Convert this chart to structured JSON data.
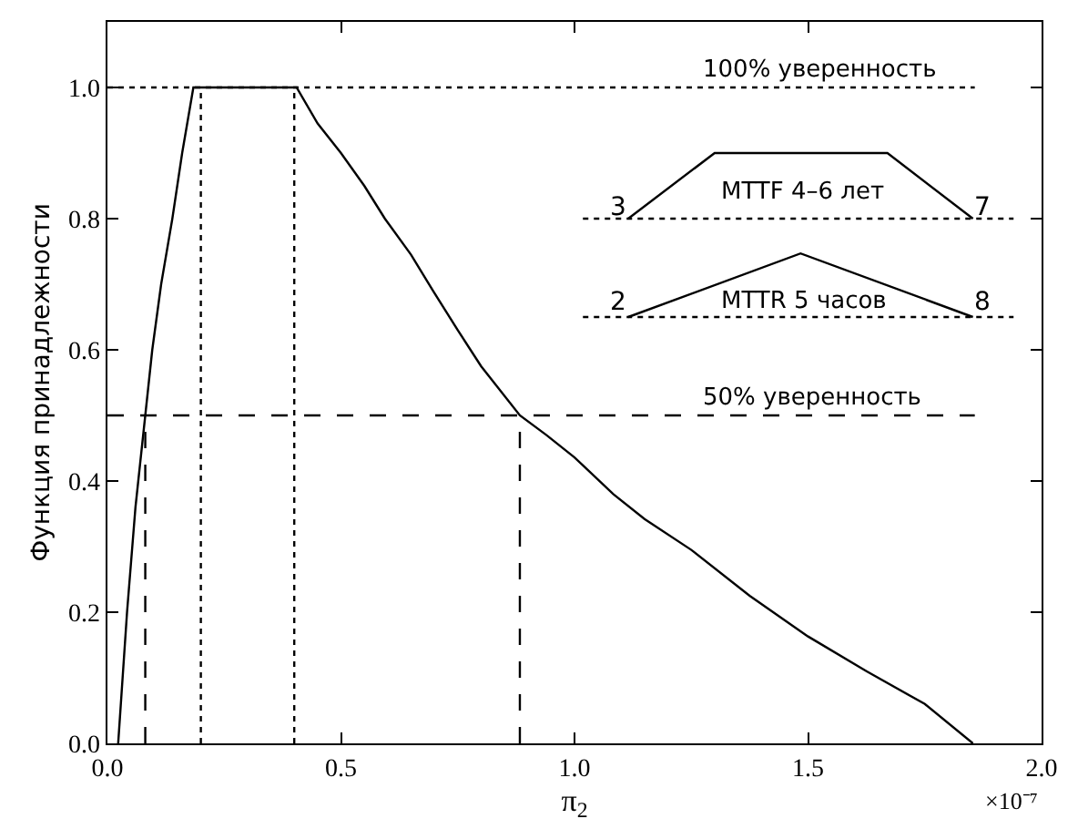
{
  "chart_data": {
    "type": "line",
    "xlabel": "π$_{2}$",
    "ylabel": "Функция принадлежности",
    "xlim": [
      0,
      2.0
    ],
    "ylim": [
      0,
      1.1
    ],
    "xticks": [
      {
        "value": 0,
        "label": "0.0"
      },
      0.5,
      {
        "value": 1,
        "label": "1.0"
      },
      1.5,
      {
        "value": 2,
        "label": "2.0"
      }
    ],
    "yticks": [
      {
        "value": 0,
        "label": "0.0"
      },
      0.2,
      0.4,
      0.6,
      0.8,
      {
        "value": 1,
        "label": "1.0"
      }
    ],
    "series": [
      {
        "color": "#000000",
        "line_style": "solid",
        "x": [
          0.023,
          0.042,
          0.06,
          0.081,
          0.096,
          0.115,
          0.139,
          0.16,
          0.184,
          0.405,
          0.45,
          0.5,
          0.55,
          0.594,
          0.65,
          0.697,
          0.75,
          0.8,
          0.883,
          0.94,
          1.0,
          1.083,
          1.15,
          1.25,
          1.375,
          1.5,
          1.625,
          1.75,
          1.853
        ],
        "values": [
          0,
          0.2,
          0.36,
          0.5,
          0.6,
          0.7,
          0.8,
          0.9,
          1.0,
          1.0,
          0.945,
          0.9,
          0.85,
          0.8,
          0.745,
          0.69,
          0.63,
          0.575,
          0.5,
          0.47,
          0.436,
          0.38,
          0.342,
          0.295,
          0.225,
          0.163,
          0.11,
          0.06,
          0
        ]
      },
      {
        "color": "#000000",
        "line_style": "dotted",
        "x": [
          0,
          1.857
        ],
        "values": [
          1.0,
          1.0
        ]
      },
      {
        "color": "#000000",
        "line_style": "dotted",
        "x": [
          0.2,
          0.2
        ],
        "values": [
          0,
          1.0
        ]
      },
      {
        "color": "#000000",
        "line_style": "dotted",
        "x": [
          0.4,
          0.4
        ],
        "values": [
          0,
          1.0
        ]
      },
      {
        "color": "#000000",
        "line_style": "dashed",
        "x": [
          0,
          1.857
        ],
        "values": [
          0.5,
          0.5
        ]
      },
      {
        "color": "#000000",
        "line_style": "dashed",
        "x": [
          0.081,
          0.081
        ],
        "values": [
          0,
          0.5
        ]
      },
      {
        "color": "#000000",
        "line_style": "dashed",
        "x": [
          0.883,
          0.883
        ],
        "values": [
          0,
          0.5
        ]
      },
      {
        "color": "#000000",
        "line_style": "dotted",
        "x": [
          1.018,
          1.94
        ],
        "values": [
          0.8,
          0.8
        ]
      },
      {
        "color": "#000000",
        "line_style": "solid",
        "x": [
          1.115,
          1.3,
          1.67,
          1.853
        ],
        "values": [
          0.8,
          0.9,
          0.9,
          0.8
        ]
      },
      {
        "color": "#000000",
        "line_style": "dotted",
        "x": [
          1.018,
          1.94
        ],
        "values": [
          0.65,
          0.65
        ]
      },
      {
        "color": "#000000",
        "line_style": "solid",
        "x": [
          1.115,
          1.484,
          1.853
        ],
        "values": [
          0.65,
          0.747,
          0.65
        ]
      }
    ],
    "annotations": [
      "100% уверенность",
      "50% уверенность",
      "MTTF 4–6 лет",
      "MTTR 5 часов",
      "3",
      "7",
      "2",
      "8",
      "×10⁻⁷"
    ]
  }
}
